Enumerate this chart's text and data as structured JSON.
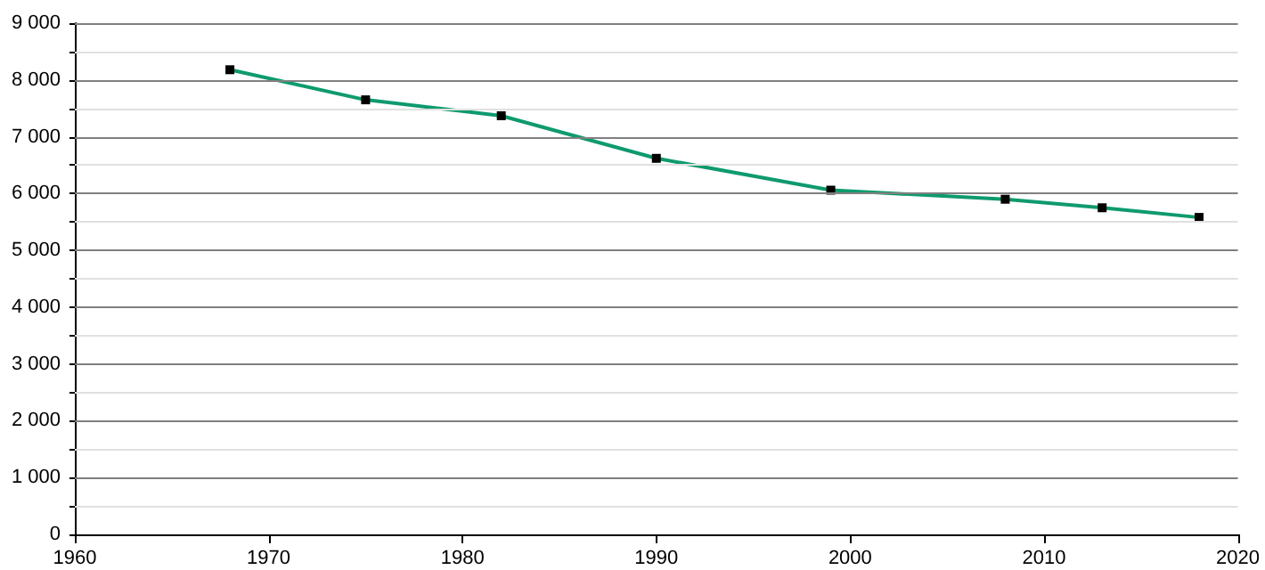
{
  "chart_data": {
    "type": "line",
    "x": [
      1968,
      1975,
      1982,
      1990,
      1999,
      2008,
      2013,
      2018
    ],
    "series": [
      {
        "color": "#0e9a6e",
        "values": [
          8180,
          7650,
          7370,
          6620,
          6060,
          5900,
          5750,
          5580
        ]
      }
    ],
    "xlim": [
      1960,
      2020
    ],
    "xticks": [
      1960,
      1970,
      1980,
      1990,
      2000,
      2010,
      2020
    ],
    "ylim": [
      0,
      9000
    ],
    "yticks": [
      {
        "value": 0,
        "label": "0"
      },
      {
        "value": 500,
        "label": null
      },
      {
        "value": 1000,
        "label": "1 000"
      },
      {
        "value": 1500,
        "label": null
      },
      {
        "value": 2000,
        "label": "2 000"
      },
      {
        "value": 2500,
        "label": null
      },
      {
        "value": 3000,
        "label": "3 000"
      },
      {
        "value": 3500,
        "label": null
      },
      {
        "value": 4000,
        "label": "4 000"
      },
      {
        "value": 4500,
        "label": null
      },
      {
        "value": 5000,
        "label": "5 000"
      },
      {
        "value": 5500,
        "label": null
      },
      {
        "value": 6000,
        "label": "6 000"
      },
      {
        "value": 6500,
        "label": null
      },
      {
        "value": 7000,
        "label": "7 000"
      },
      {
        "value": 7500,
        "label": null
      },
      {
        "value": 8000,
        "label": "8 000"
      },
      {
        "value": 8500,
        "label": null
      },
      {
        "value": 9000,
        "label": "9 000"
      }
    ],
    "grid": "y",
    "marker": "square",
    "line_style": "solid"
  }
}
